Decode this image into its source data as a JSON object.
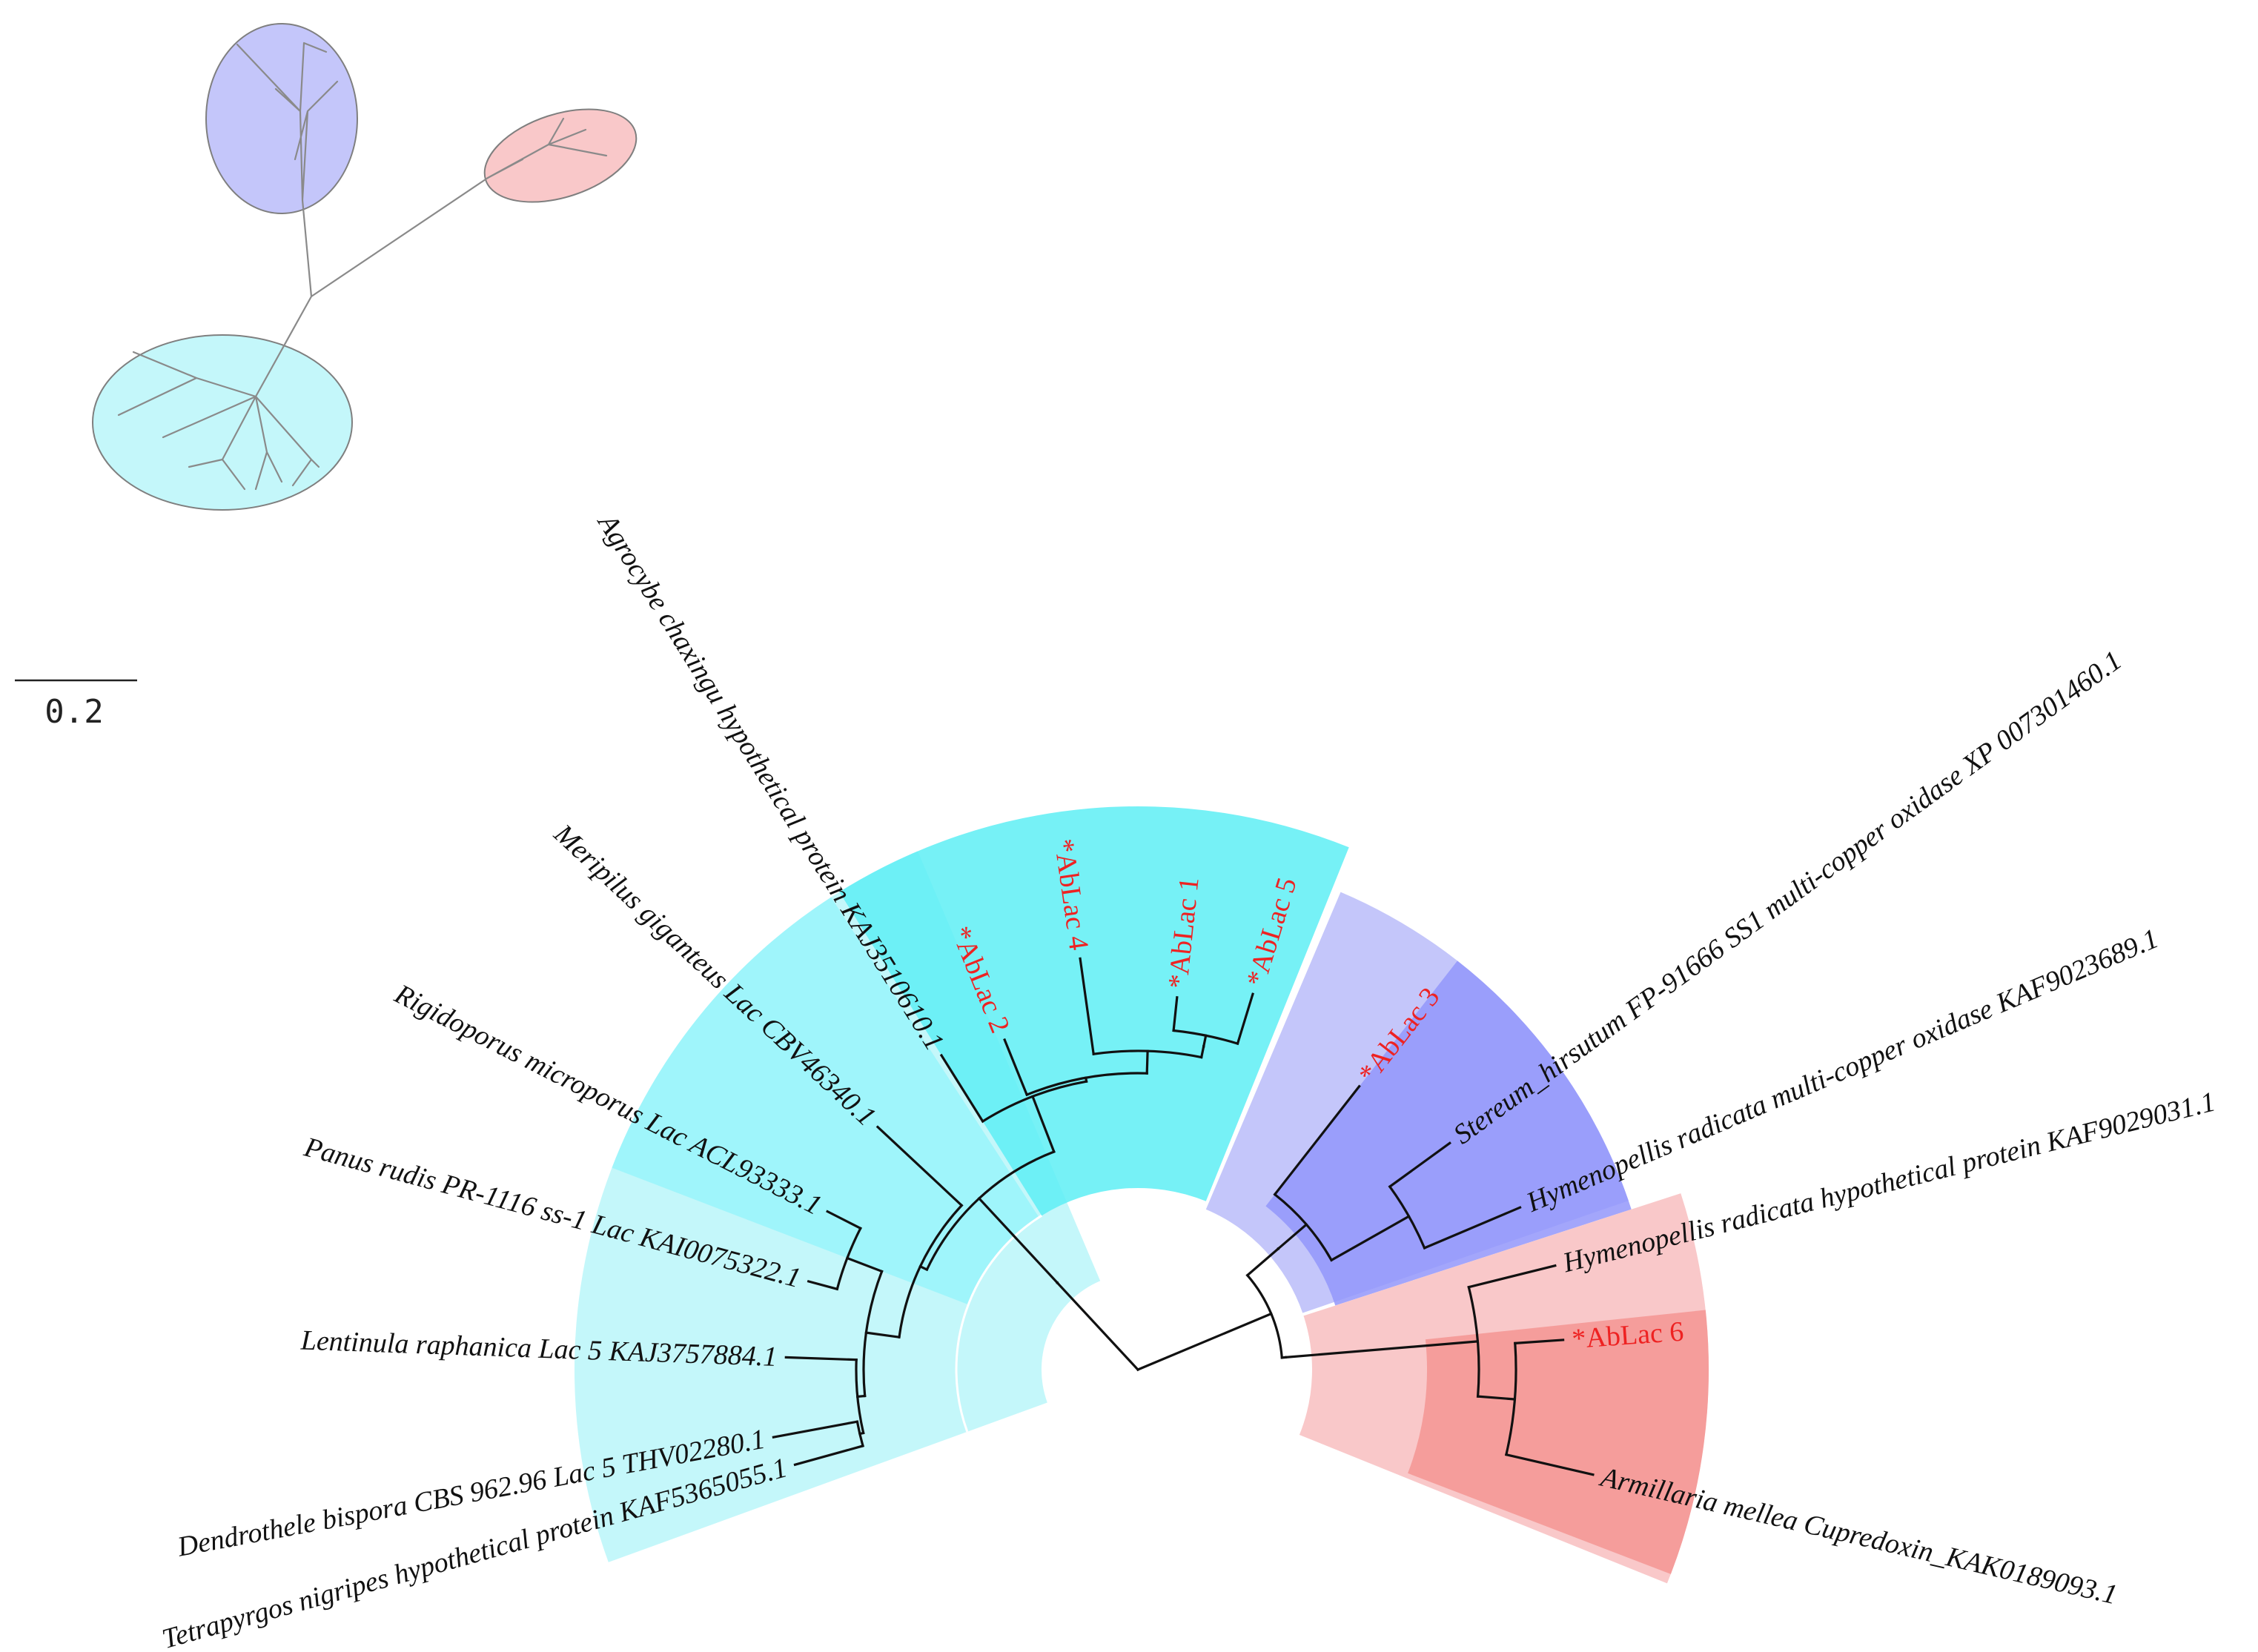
{
  "colors": {
    "cyan_light": "#c4f7fa",
    "cyan_mid": "#99f4fa",
    "cyan_strong": "#5eeef4",
    "blue_light": "#c4c6fa",
    "blue_strong": "#9396fa",
    "red_light": "#f9c8c9",
    "red_strong": "#f59593",
    "highlight_text": "#ee2222",
    "branch": "#111111"
  },
  "scale_bar": {
    "label": "0.2"
  },
  "leaves": [
    {
      "id": "tetrapyrgos",
      "label": "Tetrapyrgos nigripes hypothetical protein KAF5365055.1",
      "highlight": false
    },
    {
      "id": "dendrothele",
      "label": "Dendrothele bispora CBS 962.96 Lac 5 THV02280.1",
      "highlight": false
    },
    {
      "id": "lentinula",
      "label": "Lentinula raphanica Lac 5 KAJ3757884.1",
      "highlight": false
    },
    {
      "id": "panus",
      "label": "Panus rudis PR-1116 ss-1 Lac KAI0075322.1",
      "highlight": false
    },
    {
      "id": "rigidoporus",
      "label": "Rigidoporus microporus Lac ACL93333.1",
      "highlight": false
    },
    {
      "id": "meripilus",
      "label": "Meripilus giganteus Lac CBV46340.1",
      "highlight": false
    },
    {
      "id": "agrocybe",
      "label": "Agrocybe chaxingu hypothetical protein KAJ3510610.1",
      "highlight": false
    },
    {
      "id": "ablac2",
      "label": "*AbLac 2",
      "highlight": true
    },
    {
      "id": "ablac4",
      "label": "*AbLac 4",
      "highlight": true
    },
    {
      "id": "ablac1",
      "label": "*AbLac 1",
      "highlight": true
    },
    {
      "id": "ablac5",
      "label": "*AbLac 5",
      "highlight": true
    },
    {
      "id": "ablac3",
      "label": "*AbLac 3",
      "highlight": true
    },
    {
      "id": "stereum",
      "label": "Stereum_hirsutum FP-91666 SS1 multi-copper oxidase XP 007301460.1",
      "highlight": false
    },
    {
      "id": "hymeno_mco",
      "label": "Hymenopellis radicata multi-copper oxidase KAF9023689.1",
      "highlight": false
    },
    {
      "id": "hymeno_hyp",
      "label": "Hymenopellis radicata hypothetical protein KAF9029031.1",
      "highlight": false
    },
    {
      "id": "ablac6",
      "label": "*AbLac 6",
      "highlight": true
    },
    {
      "id": "armillaria",
      "label": "Armillaria mellea Cupredoxin_KAK0189093.1",
      "highlight": false
    }
  ]
}
